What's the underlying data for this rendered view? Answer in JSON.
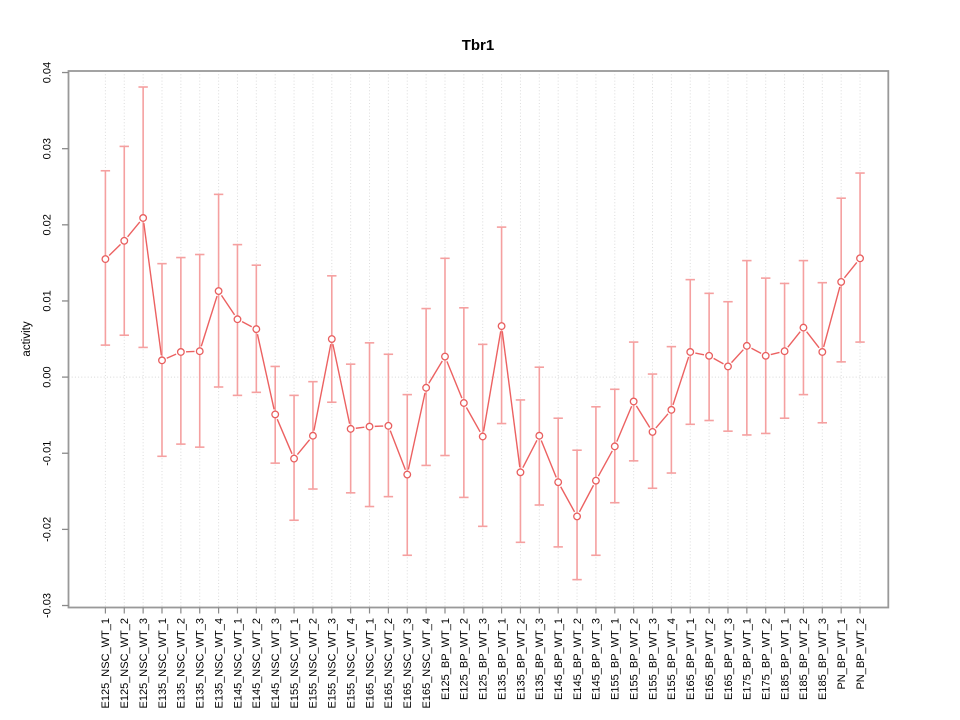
{
  "chart_data": {
    "type": "line",
    "title": "Tbr1",
    "xlabel": "",
    "ylabel": "activity",
    "ylim": [
      -0.03,
      0.04
    ],
    "ytick_labels": [
      "0.04",
      "0.03",
      "0.02",
      "0.01",
      "0.00",
      "-0.01",
      "-0.02",
      "-0.03"
    ],
    "grid": "vertical-dotted-per-category",
    "zero_reference_line": "dotted",
    "legend_position": "none",
    "marker_style": "open-circle",
    "colors": {
      "series_line": "#ec6161",
      "marker_stroke": "#e85e5e",
      "error_bar": "#f5a0a0",
      "grid_line": "#dcdcdc",
      "zero_line": "#d8d8d8",
      "frame": "#999999",
      "tick": "#8a8a8a",
      "text": "#000000"
    },
    "categories": [
      "E125_NSC_WT_1",
      "E125_NSC_WT_2",
      "E125_NSC_WT_3",
      "E135_NSC_WT_1",
      "E135_NSC_WT_2",
      "E135_NSC_WT_3",
      "E135_NSC_WT_4",
      "E145_NSC_WT_1",
      "E145_NSC_WT_2",
      "E145_NSC_WT_3",
      "E155_NSC_WT_1",
      "E155_NSC_WT_2",
      "E155_NSC_WT_3",
      "E155_NSC_WT_4",
      "E165_NSC_WT_1",
      "E165_NSC_WT_2",
      "E165_NSC_WT_3",
      "E165_NSC_WT_4",
      "E125_BP_WT_1",
      "E125_BP_WT_2",
      "E125_BP_WT_3",
      "E135_BP_WT_1",
      "E135_BP_WT_2",
      "E135_BP_WT_3",
      "E145_BP_WT_1",
      "E145_BP_WT_2",
      "E145_BP_WT_3",
      "E155_BP_WT_1",
      "E155_BP_WT_2",
      "E155_BP_WT_3",
      "E155_BP_WT_4",
      "E165_BP_WT_1",
      "E165_BP_WT_2",
      "E165_BP_WT_3",
      "E175_BP_WT_1",
      "E175_BP_WT_2",
      "E185_BP_WT_1",
      "E185_BP_WT_2",
      "E185_BP_WT_3",
      "PN_BP_WT_1",
      "PN_BP_WT_2"
    ],
    "series": [
      {
        "name": "activity",
        "values": [
          0.0155,
          0.0179,
          0.0209,
          0.0022,
          0.0033,
          0.0034,
          0.0113,
          0.0076,
          0.0063,
          -0.0049,
          -0.0107,
          -0.0077,
          0.005,
          -0.0068,
          -0.0065,
          -0.0064,
          -0.0128,
          -0.0014,
          0.0027,
          -0.0034,
          -0.0078,
          0.0067,
          -0.0125,
          -0.0077,
          -0.0138,
          -0.0183,
          -0.0136,
          -0.0091,
          -0.0032,
          -0.0072,
          -0.0043,
          0.0033,
          0.0028,
          0.0014,
          0.0041,
          0.0028,
          0.0034,
          0.0065,
          0.0033,
          0.0125,
          0.0156
        ],
        "error_low": [
          0.0042,
          0.0055,
          0.0039,
          -0.0104,
          -0.0088,
          -0.0092,
          -0.0013,
          -0.0024,
          -0.002,
          -0.0113,
          -0.0188,
          -0.0147,
          -0.0033,
          -0.0152,
          -0.017,
          -0.0157,
          -0.0234,
          -0.0116,
          -0.0103,
          -0.0158,
          -0.0196,
          -0.0061,
          -0.0217,
          -0.0168,
          -0.0223,
          -0.0266,
          -0.0234,
          -0.0165,
          -0.011,
          -0.0146,
          -0.0126,
          -0.0062,
          -0.0057,
          -0.0071,
          -0.0076,
          -0.0074,
          -0.0054,
          -0.0023,
          -0.006,
          0.002,
          0.0046
        ],
        "error_high": [
          0.0271,
          0.0303,
          0.0381,
          0.0149,
          0.0157,
          0.0161,
          0.024,
          0.0174,
          0.0147,
          0.0014,
          -0.0024,
          -0.0006,
          0.0133,
          0.0017,
          0.0045,
          0.003,
          -0.0023,
          0.009,
          0.0156,
          0.0091,
          0.0043,
          0.0197,
          -0.003,
          0.0013,
          -0.0054,
          -0.0096,
          -0.0039,
          -0.0016,
          0.0046,
          0.0004,
          0.004,
          0.0128,
          0.011,
          0.0099,
          0.0153,
          0.013,
          0.0123,
          0.0153,
          0.0124,
          0.0235,
          0.0268
        ]
      }
    ]
  }
}
